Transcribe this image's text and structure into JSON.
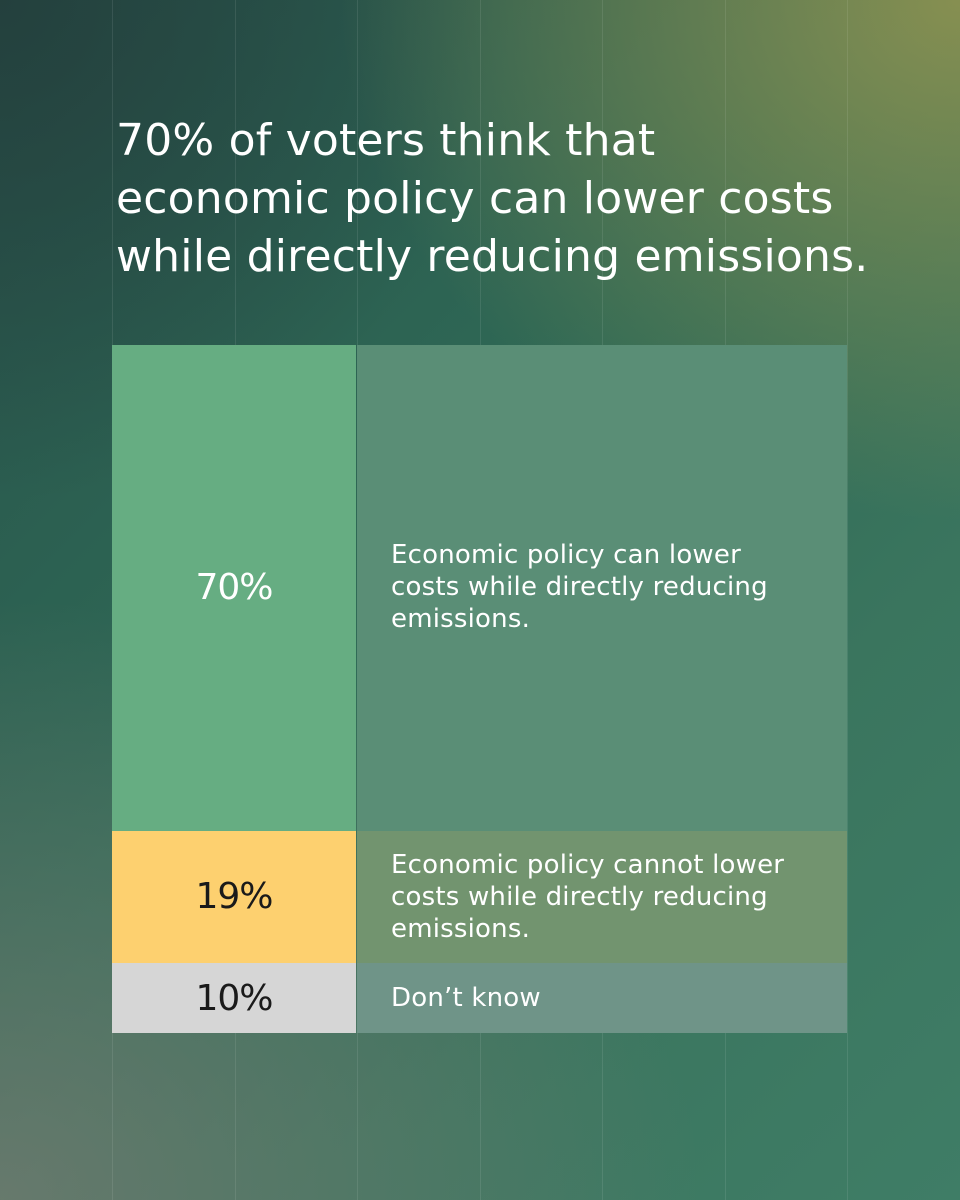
{
  "headline": "70% of voters think that economic policy can lower costs while directly reducing emissions.",
  "chart_data": {
    "type": "bar",
    "orientation": "stacked-horizontal-blocks",
    "title": "70% of voters think that economic policy can lower costs while directly reducing emissions.",
    "categories": [
      "Economic policy can lower costs while directly reducing emissions.",
      "Economic policy cannot lower costs while directly reducing emissions.",
      "Don’t know"
    ],
    "values": [
      70,
      19,
      10
    ],
    "labels": [
      "70%",
      "19%",
      "10%"
    ],
    "unit": "%",
    "colors": {
      "pct": [
        "#66ad82",
        "#fdd06f",
        "#d6d6d6"
      ],
      "pct_text": [
        "#ffffff",
        "#1a1a1a",
        "#1a1a1a"
      ],
      "desc": [
        "#5a8e76",
        "#72946f",
        "#6f9488"
      ]
    }
  }
}
